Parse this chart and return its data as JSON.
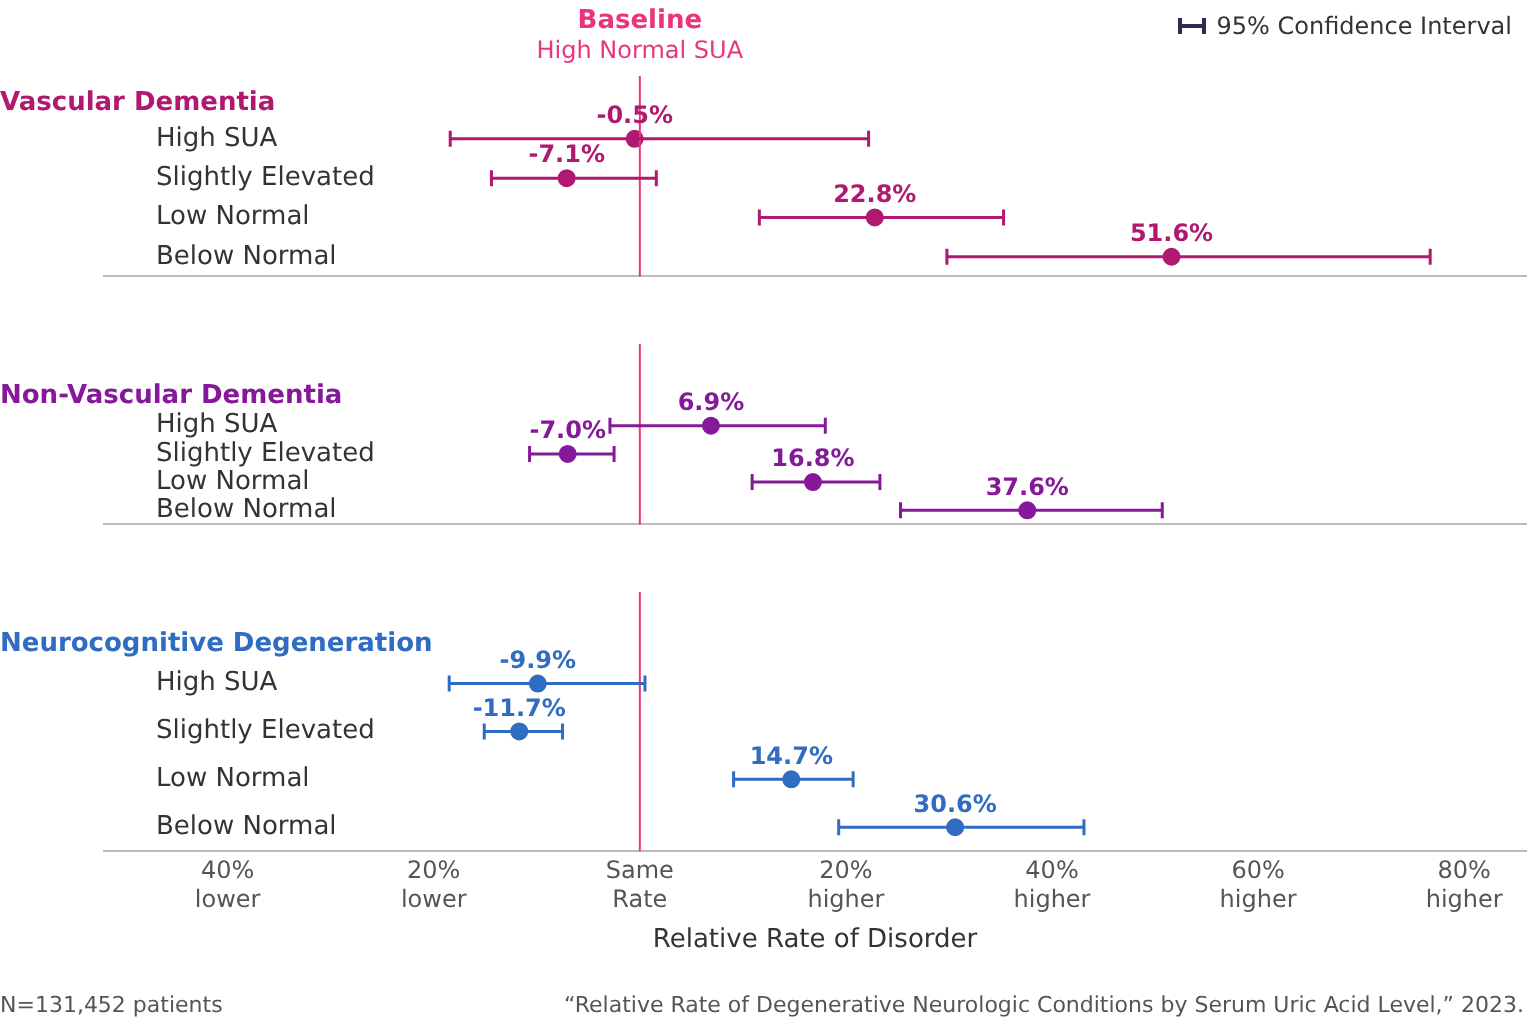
{
  "chart_data": [
    {
      "type": "scatter",
      "orientation": "horizontal",
      "title": "Vascular Dementia",
      "categories": [
        "High SUA",
        "Slightly Elevated",
        "Low Normal",
        "Below Normal"
      ],
      "series": [
        {
          "color": "#b0196f",
          "values": [
            -0.5,
            -7.1,
            22.8,
            51.6
          ],
          "value_labels": [
            "-0.5%",
            "-7.1%",
            "22.8%",
            "51.6%"
          ],
          "errors": [
            [
              -18.4,
              22.2
            ],
            [
              -14.4,
              1.6
            ],
            [
              11.6,
              35.3
            ],
            [
              29.8,
              76.7
            ]
          ]
        }
      ],
      "xlim": [
        -52,
        86
      ],
      "tick_labels": "y",
      "grid": false,
      "legend": false,
      "marker": "circle",
      "ref_lines": [
        {
          "axis": "x",
          "value": 0,
          "label": "Baseline\nHigh Normal SUA",
          "color": "#e8357d"
        }
      ],
      "annotations": [
        "95% Confidence Interval"
      ]
    },
    {
      "type": "scatter",
      "orientation": "horizontal",
      "title": "Non-Vascular Dementia",
      "categories": [
        "High SUA",
        "Slightly Elevated",
        "Low Normal",
        "Below Normal"
      ],
      "series": [
        {
          "color": "#86199a",
          "values": [
            6.9,
            -7.0,
            16.8,
            37.6
          ],
          "value_labels": [
            "6.9%",
            "-7.0%",
            "16.8%",
            "37.6%"
          ],
          "errors": [
            [
              -2.9,
              18.0
            ],
            [
              -10.7,
              -2.5
            ],
            [
              10.9,
              23.3
            ],
            [
              25.3,
              50.7
            ]
          ]
        }
      ],
      "xlim": [
        -52,
        86
      ],
      "tick_labels": "y",
      "grid": false,
      "legend": false,
      "marker": "circle",
      "ref_lines": [
        {
          "axis": "x",
          "value": 0,
          "color": "#e8357d"
        }
      ]
    },
    {
      "type": "scatter",
      "orientation": "horizontal",
      "title": "Neurocognitive Degeneration",
      "xlabel": "Relative Rate of Disorder",
      "categories": [
        "High SUA",
        "Slightly Elevated",
        "Low Normal",
        "Below Normal"
      ],
      "series": [
        {
          "color": "#2f6cc2",
          "values": [
            -9.9,
            -11.7,
            14.7,
            30.6
          ],
          "value_labels": [
            "-9.9%",
            "-11.7%",
            "14.7%",
            "30.6%"
          ],
          "errors": [
            [
              -18.5,
              0.5
            ],
            [
              -15.1,
              -7.5
            ],
            [
              9.1,
              20.7
            ],
            [
              19.3,
              43.1
            ]
          ]
        }
      ],
      "xlim": [
        -52,
        86
      ],
      "xticks": [
        {
          "value": -40,
          "label": "40%\nlower"
        },
        {
          "value": -20,
          "label": "20%\nlower"
        },
        {
          "value": 0,
          "label": "Same\nRate"
        },
        {
          "value": 20,
          "label": "20%\nhigher"
        },
        {
          "value": 40,
          "label": "40%\nhigher"
        },
        {
          "value": 60,
          "label": "60%\nhigher"
        },
        {
          "value": 80,
          "label": "80%\nhigher"
        }
      ],
      "grid": false,
      "legend": false,
      "marker": "circle",
      "ref_lines": [
        {
          "axis": "x",
          "value": 0,
          "color": "#e8357d"
        }
      ],
      "annotations": [
        "N=131,452 patients",
        "“Relative Rate of Degenerative Neurologic Conditions by Serum Uric Acid Level,” 2023."
      ]
    }
  ]
}
